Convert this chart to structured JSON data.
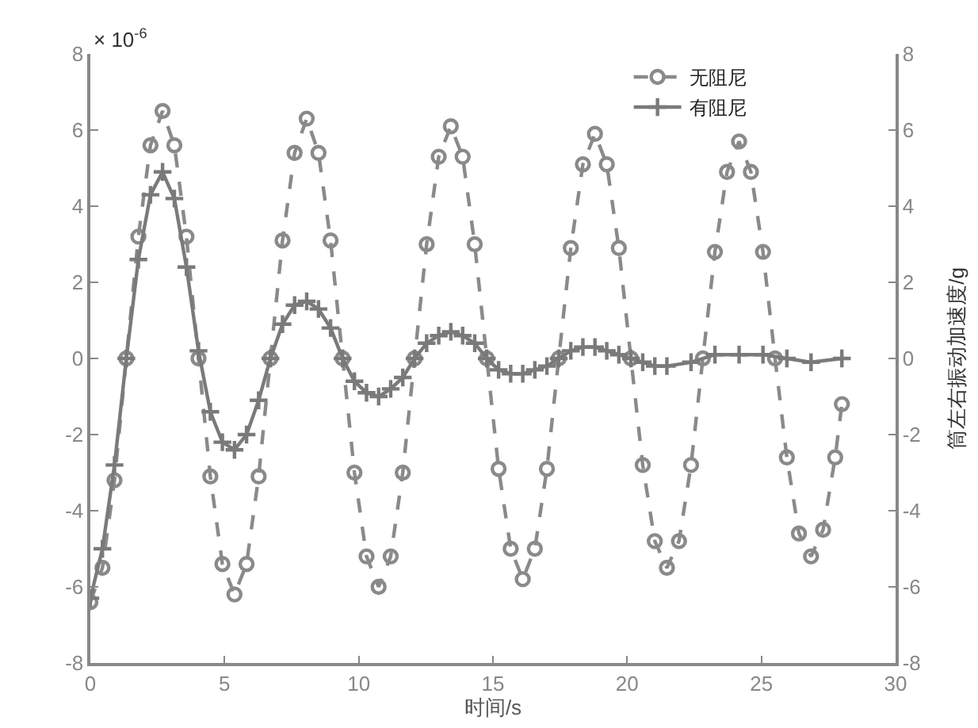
{
  "chart_data": {
    "type": "line",
    "xlabel": "时间/s",
    "y2label": "筒左右振动加速度/g",
    "annotations": [
      "× 10$^{-6}$"
    ],
    "xlim": [
      0,
      30
    ],
    "xticks": [
      0,
      5,
      10,
      15,
      20,
      25,
      30
    ],
    "ylim": [
      -8,
      8
    ],
    "yticks": [
      -8,
      -6,
      -4,
      -2,
      0,
      2,
      4,
      6,
      8
    ],
    "y2lim": [
      -8,
      8
    ],
    "y2ticks": [
      -8,
      -6,
      -4,
      -2,
      0,
      2,
      4,
      6,
      8
    ],
    "grid": false,
    "legend": "top right",
    "series": [
      {
        "name": "无阻尼",
        "color": "#8a8a8a",
        "marker": "circle",
        "line_style": "dashed",
        "x": [
          0,
          0.45,
          0.9,
          1.34,
          1.79,
          2.24,
          2.69,
          3.13,
          3.58,
          4.03,
          4.47,
          4.92,
          5.37,
          5.82,
          6.27,
          6.71,
          7.16,
          7.61,
          8.06,
          8.5,
          8.95,
          9.4,
          9.84,
          10.29,
          10.74,
          11.19,
          11.64,
          12.08,
          12.53,
          12.98,
          13.43,
          13.87,
          14.32,
          14.77,
          15.21,
          15.66,
          16.11,
          16.56,
          17.01,
          17.45,
          17.9,
          18.35,
          18.8,
          19.24,
          19.69,
          20.14,
          20.58,
          21.03,
          21.48,
          21.93,
          22.38,
          22.82,
          23.27,
          23.72,
          24.17,
          24.61,
          25.06,
          25.51,
          25.95,
          26.4,
          26.85,
          27.3,
          27.75,
          28.0
        ],
        "values": [
          -6.4,
          -5.5,
          -3.2,
          0,
          3.2,
          5.6,
          6.5,
          5.6,
          3.2,
          0,
          -3.1,
          -5.4,
          -6.2,
          -5.4,
          -3.1,
          0,
          3.1,
          5.4,
          6.3,
          5.4,
          3.1,
          0,
          -3.0,
          -5.2,
          -6.0,
          -5.2,
          -3.0,
          0,
          3.0,
          5.3,
          6.1,
          5.3,
          3.0,
          0,
          -2.9,
          -5.0,
          -5.8,
          -5.0,
          -2.9,
          0,
          2.9,
          5.1,
          5.9,
          5.1,
          2.9,
          0,
          -2.8,
          -4.8,
          -5.5,
          -4.8,
          -2.8,
          0,
          2.8,
          4.9,
          5.7,
          4.9,
          2.8,
          0,
          -2.6,
          -4.6,
          -5.2,
          -4.5,
          -2.6,
          -1.2
        ]
      },
      {
        "name": "有阻尼",
        "color": "#7a7a7a",
        "marker": "cross",
        "line_style": "solid",
        "x": [
          0,
          0.45,
          0.9,
          1.34,
          1.79,
          2.24,
          2.69,
          3.13,
          3.58,
          4.03,
          4.47,
          4.92,
          5.37,
          5.82,
          6.27,
          6.71,
          7.16,
          7.61,
          8.06,
          8.5,
          8.95,
          9.4,
          9.84,
          10.29,
          10.74,
          11.19,
          11.64,
          12.08,
          12.53,
          12.98,
          13.43,
          13.87,
          14.32,
          14.77,
          15.21,
          15.66,
          16.11,
          16.56,
          17.01,
          17.45,
          17.9,
          18.35,
          18.8,
          19.24,
          19.69,
          20.14,
          20.58,
          21.03,
          21.48,
          22.38,
          23.27,
          24.17,
          25.06,
          25.95,
          26.85,
          28.0
        ],
        "values": [
          -6.3,
          -5.0,
          -2.8,
          0,
          2.6,
          4.3,
          4.9,
          4.2,
          2.4,
          0.2,
          -1.4,
          -2.2,
          -2.4,
          -2.0,
          -1.1,
          0,
          0.9,
          1.4,
          1.5,
          1.3,
          0.8,
          0,
          -0.6,
          -0.9,
          -1.0,
          -0.8,
          -0.5,
          0,
          0.4,
          0.6,
          0.7,
          0.6,
          0.4,
          0,
          -0.3,
          -0.4,
          -0.4,
          -0.3,
          -0.2,
          0,
          0.2,
          0.3,
          0.3,
          0.2,
          0.1,
          0,
          -0.1,
          -0.2,
          -0.2,
          -0.1,
          0.1,
          0.1,
          0.1,
          0,
          -0.1,
          0
        ]
      }
    ]
  }
}
